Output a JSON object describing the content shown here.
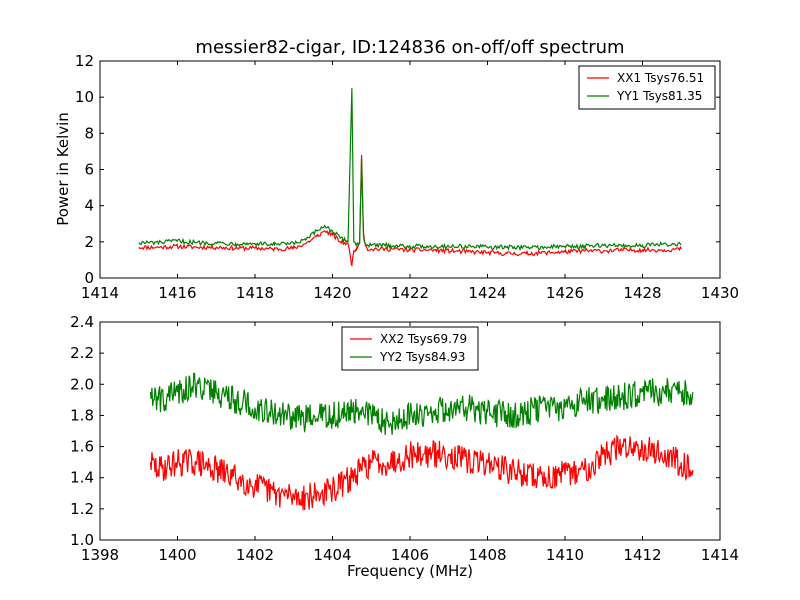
{
  "chart_data": [
    {
      "type": "line",
      "title": "messier82-cigar, ID:124836 on-off/off spectrum",
      "xlabel": "",
      "ylabel": "Power in Kelvin",
      "xlim": [
        1414,
        1430
      ],
      "ylim": [
        0,
        12
      ],
      "xticks": [
        "1414",
        "1416",
        "1418",
        "1420",
        "1422",
        "1424",
        "1426",
        "1428",
        "1430"
      ],
      "yticks": [
        "0",
        "2",
        "4",
        "6",
        "8",
        "10",
        "12"
      ],
      "legend_position": "top-right",
      "series": [
        {
          "name": "XX1 Tsys76.51",
          "color": "#ff0000",
          "x": [
            1415.0,
            1415.5,
            1416.0,
            1416.5,
            1417.0,
            1417.5,
            1418.0,
            1418.5,
            1419.0,
            1419.3,
            1419.6,
            1419.8,
            1420.0,
            1420.2,
            1420.4,
            1420.5,
            1420.55,
            1420.6,
            1420.65,
            1420.7,
            1420.75,
            1420.8,
            1420.85,
            1420.9,
            1421.0,
            1421.5,
            1422.0,
            1422.5,
            1423.0,
            1423.5,
            1424.0,
            1424.5,
            1425.0,
            1425.5,
            1426.0,
            1426.5,
            1427.0,
            1427.5,
            1428.0,
            1428.5,
            1429.0
          ],
          "y": [
            1.7,
            1.7,
            1.75,
            1.7,
            1.7,
            1.65,
            1.65,
            1.6,
            1.65,
            1.9,
            2.3,
            2.6,
            2.4,
            2.0,
            1.9,
            0.7,
            1.5,
            1.6,
            1.7,
            2.0,
            6.8,
            2.5,
            1.8,
            1.6,
            1.6,
            1.6,
            1.55,
            1.55,
            1.5,
            1.45,
            1.4,
            1.35,
            1.35,
            1.4,
            1.45,
            1.5,
            1.5,
            1.55,
            1.55,
            1.55,
            1.6
          ]
        },
        {
          "name": "YY1 Tsys81.35",
          "color": "#008000",
          "x": [
            1415.0,
            1415.5,
            1416.0,
            1416.5,
            1417.0,
            1417.5,
            1418.0,
            1418.5,
            1419.0,
            1419.3,
            1419.6,
            1419.8,
            1420.0,
            1420.2,
            1420.4,
            1420.5,
            1420.55,
            1420.6,
            1420.7,
            1420.75,
            1420.8,
            1420.85,
            1420.9,
            1421.0,
            1421.5,
            1422.0,
            1422.5,
            1423.0,
            1423.5,
            1424.0,
            1424.5,
            1425.0,
            1425.5,
            1426.0,
            1426.5,
            1427.0,
            1427.5,
            1428.0,
            1428.5,
            1429.0
          ],
          "y": [
            1.95,
            1.95,
            2.05,
            1.95,
            1.95,
            1.9,
            1.9,
            1.85,
            1.9,
            2.1,
            2.6,
            2.9,
            2.6,
            2.2,
            2.0,
            10.5,
            2.0,
            1.85,
            1.9,
            6.6,
            2.3,
            1.9,
            1.8,
            1.8,
            1.8,
            1.75,
            1.75,
            1.75,
            1.75,
            1.7,
            1.7,
            1.7,
            1.7,
            1.75,
            1.75,
            1.8,
            1.8,
            1.8,
            1.85,
            1.85
          ]
        }
      ]
    },
    {
      "type": "line",
      "title": "",
      "xlabel": "Frequency (MHz)",
      "ylabel": "",
      "xlim": [
        1398,
        1414
      ],
      "ylim": [
        1.0,
        2.4
      ],
      "xticks": [
        "1398",
        "1400",
        "1402",
        "1404",
        "1406",
        "1408",
        "1410",
        "1412",
        "1414"
      ],
      "yticks": [
        "1.0",
        "1.2",
        "1.4",
        "1.6",
        "1.8",
        "2.0",
        "2.2",
        "2.4"
      ],
      "legend_position": "top-center",
      "series": [
        {
          "name": "XX2 Tsys69.79",
          "color": "#ff0000",
          "x": [
            1399.3,
            1399.5,
            1400.0,
            1400.5,
            1401.0,
            1401.5,
            1402.0,
            1402.5,
            1403.0,
            1403.5,
            1404.0,
            1404.5,
            1405.0,
            1405.5,
            1406.0,
            1406.5,
            1407.0,
            1407.5,
            1408.0,
            1408.5,
            1409.0,
            1409.5,
            1410.0,
            1410.5,
            1411.0,
            1411.5,
            1412.0,
            1412.5,
            1413.0,
            1413.3
          ],
          "y": [
            1.5,
            1.45,
            1.5,
            1.5,
            1.45,
            1.4,
            1.35,
            1.3,
            1.28,
            1.28,
            1.32,
            1.4,
            1.5,
            1.5,
            1.55,
            1.55,
            1.55,
            1.5,
            1.5,
            1.45,
            1.42,
            1.4,
            1.42,
            1.45,
            1.55,
            1.6,
            1.6,
            1.55,
            1.5,
            1.45
          ]
        },
        {
          "name": "YY2 Tsys84.93",
          "color": "#008000",
          "x": [
            1399.3,
            1399.5,
            1400.0,
            1400.5,
            1401.0,
            1401.5,
            1402.0,
            1402.5,
            1403.0,
            1403.5,
            1404.0,
            1404.5,
            1405.0,
            1405.5,
            1406.0,
            1406.5,
            1407.0,
            1407.5,
            1408.0,
            1408.5,
            1409.0,
            1409.5,
            1410.0,
            1410.5,
            1411.0,
            1411.5,
            1412.0,
            1412.5,
            1413.0,
            1413.3
          ],
          "y": [
            1.95,
            1.9,
            1.95,
            2.0,
            1.95,
            1.9,
            1.85,
            1.82,
            1.78,
            1.78,
            1.8,
            1.82,
            1.8,
            1.75,
            1.8,
            1.82,
            1.85,
            1.85,
            1.82,
            1.8,
            1.82,
            1.85,
            1.85,
            1.9,
            1.9,
            1.92,
            1.95,
            1.95,
            1.95,
            1.95
          ]
        }
      ]
    }
  ]
}
